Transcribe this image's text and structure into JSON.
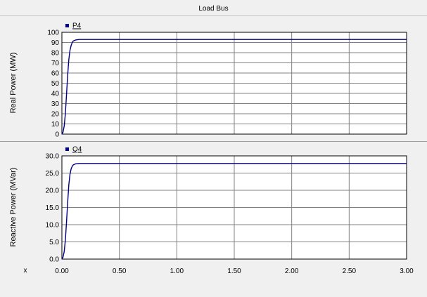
{
  "window": {
    "title": "Load Bus"
  },
  "x_axis": {
    "corner_label": "x",
    "ticks": [
      "0.00",
      "0.50",
      "1.00",
      "1.50",
      "2.00",
      "2.50",
      "3.00"
    ]
  },
  "colors": {
    "series": "#000080",
    "grid": "#808080",
    "plot_bg": "#ffffff",
    "background": "#f0f0f0"
  },
  "chart_data": [
    {
      "type": "line",
      "ylabel": "Real Power (MW)",
      "xlim": [
        0,
        3
      ],
      "ylim": [
        0,
        100
      ],
      "y_ticks": [
        "0",
        "10",
        "20",
        "30",
        "40",
        "50",
        "60",
        "70",
        "80",
        "90",
        "100"
      ],
      "grid": true,
      "legend_position": "top-left",
      "series": [
        {
          "name": "P4",
          "x": [
            0.0,
            0.01,
            0.02,
            0.03,
            0.04,
            0.05,
            0.06,
            0.07,
            0.08,
            0.09,
            0.1,
            0.12,
            0.15,
            0.2,
            0.5,
            1.0,
            1.5,
            2.0,
            2.5,
            3.0
          ],
          "y": [
            0,
            2,
            8,
            20,
            38,
            58,
            73,
            82,
            87,
            90,
            91.5,
            92.5,
            93,
            93,
            93,
            93,
            93,
            93,
            93,
            93
          ]
        }
      ]
    },
    {
      "type": "line",
      "ylabel": "Reactive Power (MVar)",
      "xlim": [
        0,
        3
      ],
      "ylim": [
        0,
        30
      ],
      "y_ticks": [
        "0.0",
        "5.0",
        "10.0",
        "15.0",
        "20.0",
        "25.0",
        "30.0"
      ],
      "grid": true,
      "legend_position": "top-left",
      "series": [
        {
          "name": "Q4",
          "x": [
            0.0,
            0.01,
            0.02,
            0.03,
            0.04,
            0.05,
            0.06,
            0.07,
            0.08,
            0.09,
            0.1,
            0.12,
            0.15,
            0.2,
            0.5,
            1.0,
            1.5,
            2.0,
            2.5,
            3.0
          ],
          "y": [
            0,
            0.6,
            2.2,
            5.5,
            10.5,
            16.5,
            21.5,
            24.5,
            26.2,
            27,
            27.4,
            27.7,
            27.8,
            27.8,
            27.8,
            27.8,
            27.8,
            27.8,
            27.8,
            27.8
          ]
        }
      ]
    }
  ]
}
